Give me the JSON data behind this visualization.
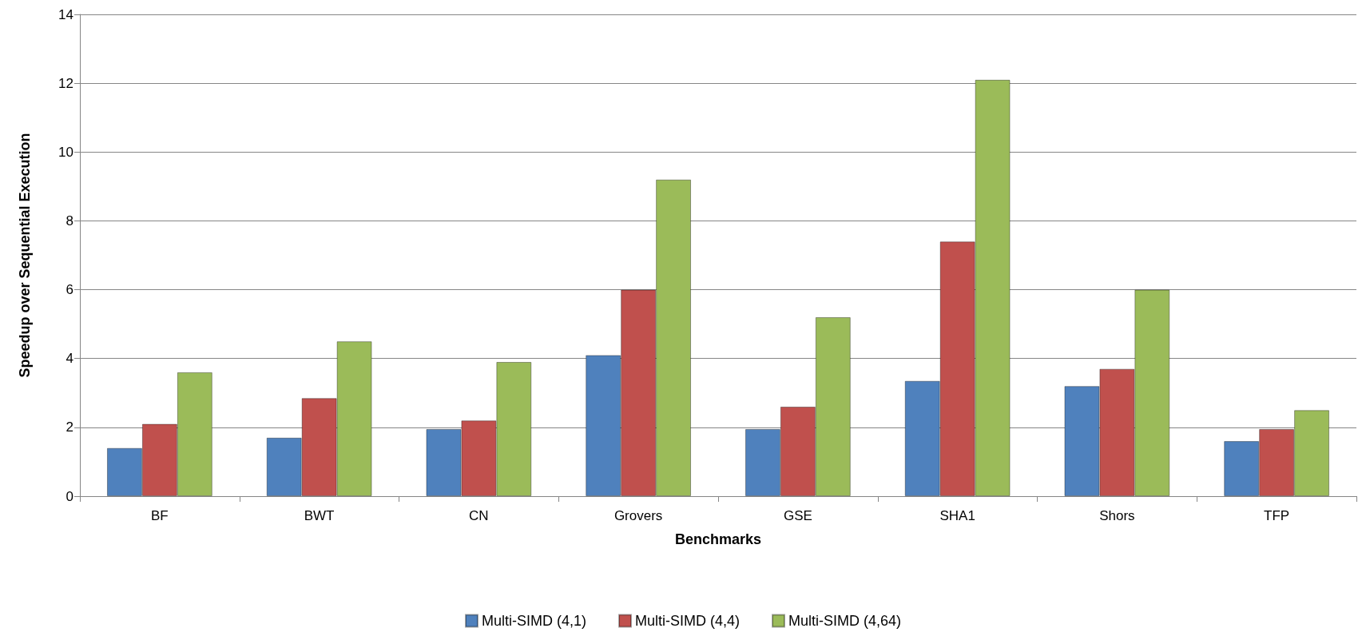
{
  "chart_data": {
    "type": "bar",
    "xlabel": "Benchmarks",
    "ylabel": "Speedup over Sequential Execution",
    "categories": [
      "BF",
      "BWT",
      "CN",
      "Grovers",
      "GSE",
      "SHA1",
      "Shors",
      "TFP"
    ],
    "series": [
      {
        "name": "Multi-SIMD (4,1)",
        "color": "#4f81bd",
        "values": [
          1.4,
          1.7,
          1.95,
          4.1,
          1.95,
          3.35,
          3.2,
          1.6
        ]
      },
      {
        "name": "Multi-SIMD (4,4)",
        "color": "#c0504d",
        "values": [
          2.1,
          2.85,
          2.2,
          6.0,
          2.6,
          7.4,
          3.7,
          1.95
        ]
      },
      {
        "name": "Multi-SIMD (4,64)",
        "color": "#9bbb59",
        "values": [
          3.6,
          4.5,
          3.9,
          9.2,
          5.2,
          12.1,
          6.0,
          2.5
        ]
      }
    ],
    "ylim": [
      0,
      14
    ],
    "yticks": [
      0,
      2,
      4,
      6,
      8,
      10,
      12,
      14
    ],
    "grid": "y",
    "legend": "bottom"
  }
}
